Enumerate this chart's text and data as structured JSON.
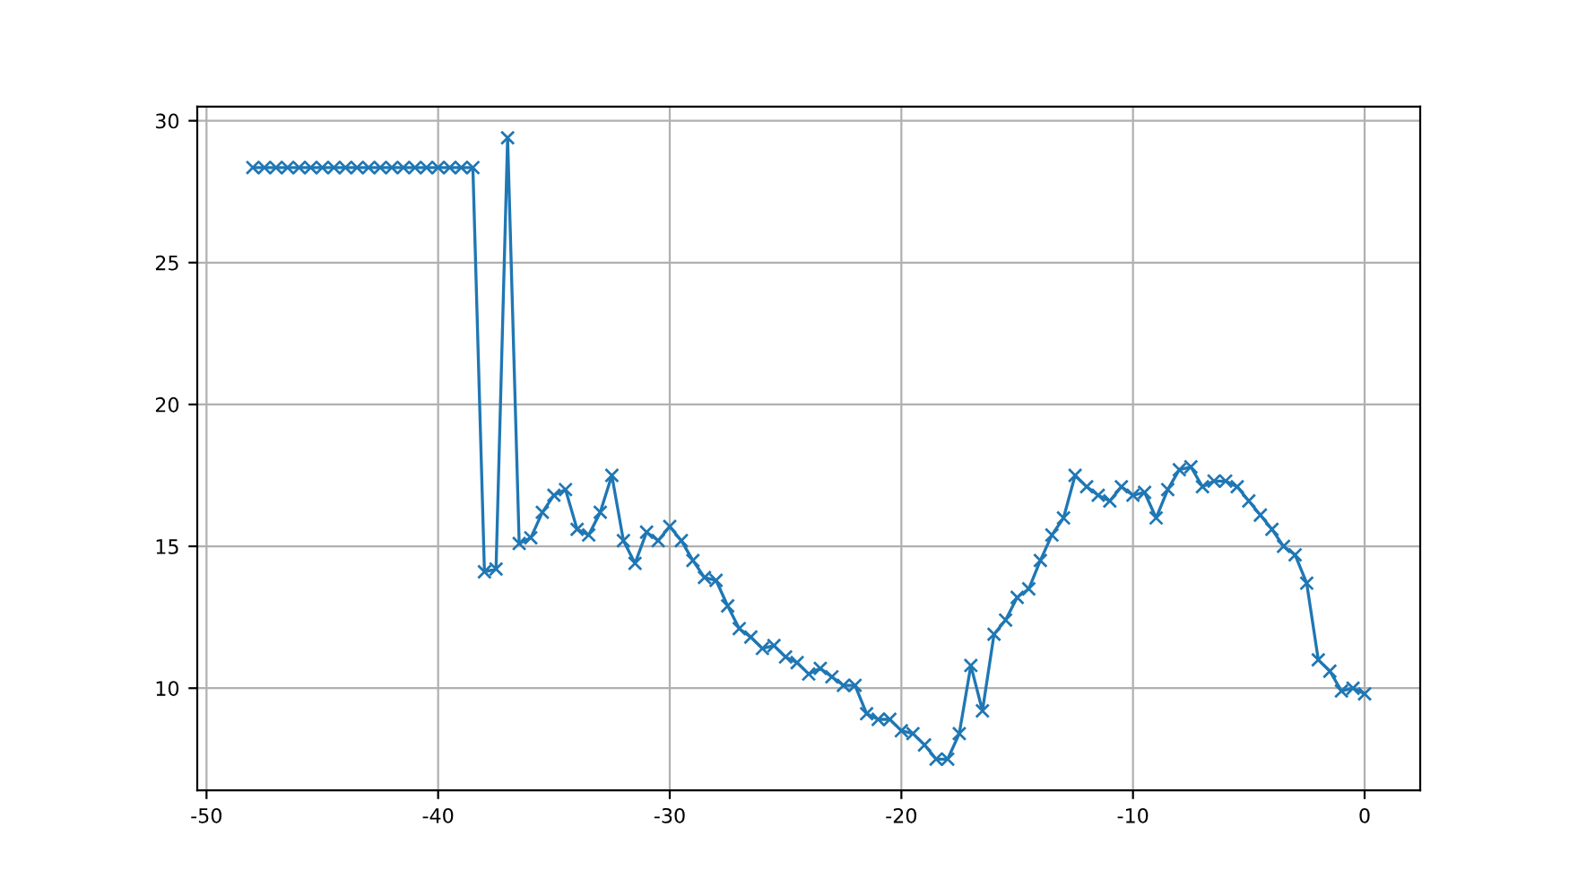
{
  "chart_data": {
    "type": "line",
    "x": [
      -48,
      -47.5,
      -47,
      -46.5,
      -46,
      -45.5,
      -45,
      -44.5,
      -44,
      -43.5,
      -43,
      -42.5,
      -42,
      -41.5,
      -41,
      -40.5,
      -40,
      -39.5,
      -39,
      -38.5,
      -38,
      -37.5,
      -37,
      -36.5,
      -36,
      -35.5,
      -35,
      -34.5,
      -34,
      -33.5,
      -33,
      -32.5,
      -32,
      -31.5,
      -31,
      -30.5,
      -30,
      -29.5,
      -29,
      -28.5,
      -28,
      -27.5,
      -27,
      -26.5,
      -26,
      -25.5,
      -25,
      -24.5,
      -24,
      -23.5,
      -23,
      -22.5,
      -22,
      -21.5,
      -21,
      -20.5,
      -20,
      -19.5,
      -19,
      -18.5,
      -18,
      -17.5,
      -17,
      -16.5,
      -16,
      -15.5,
      -15,
      -14.5,
      -14,
      -13.5,
      -13,
      -12.5,
      -12,
      -11.5,
      -11,
      -10.5,
      -10,
      -9.5,
      -9,
      -8.5,
      -8,
      -7.5,
      -7,
      -6.5,
      -6,
      -5.5,
      -5,
      -4.5,
      -4,
      -3.5,
      -3,
      -2.5,
      -2,
      -1.5,
      -1,
      -0.5,
      0
    ],
    "series": [
      {
        "color": "#1f77b4",
        "values": [
          28.35,
          28.35,
          28.35,
          28.35,
          28.35,
          28.35,
          28.35,
          28.35,
          28.35,
          28.35,
          28.35,
          28.35,
          28.35,
          28.35,
          28.35,
          28.35,
          28.35,
          28.35,
          28.35,
          28.35,
          14.1,
          14.2,
          29.4,
          15.1,
          15.3,
          16.2,
          16.8,
          17.0,
          15.6,
          15.4,
          16.2,
          17.5,
          15.2,
          14.4,
          15.5,
          15.2,
          15.7,
          15.2,
          14.5,
          13.9,
          13.8,
          12.9,
          12.1,
          11.8,
          11.4,
          11.5,
          11.1,
          10.9,
          10.5,
          10.7,
          10.4,
          10.1,
          10.1,
          9.1,
          8.9,
          8.9,
          8.5,
          8.4,
          8.0,
          7.5,
          7.5,
          8.4,
          10.8,
          9.2,
          11.9,
          12.4,
          13.2,
          13.5,
          14.5,
          15.4,
          16.0,
          17.5,
          17.1,
          16.8,
          16.6,
          17.1,
          16.8,
          16.9,
          16.0,
          17.0,
          17.7,
          17.8,
          17.1,
          17.3,
          17.3,
          17.1,
          16.6,
          16.1,
          15.6,
          15.0,
          14.7,
          13.7,
          11.0,
          10.6,
          9.9,
          10.0,
          9.8
        ]
      }
    ],
    "xlim": [
      -50.4,
      2.4
    ],
    "ylim": [
      6.4,
      30.5
    ],
    "xticks": [
      -50,
      -40,
      -30,
      -20,
      -10,
      0
    ],
    "yticks": [
      10,
      15,
      20,
      25,
      30
    ],
    "grid": true,
    "marker": "cross",
    "line_style": "solid"
  }
}
